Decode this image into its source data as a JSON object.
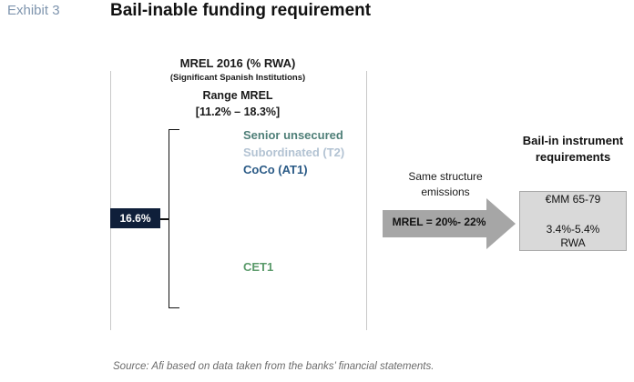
{
  "exhibit": {
    "label": "Exhibit 3",
    "title": "Bail-inable funding requirement"
  },
  "mrel_panel": {
    "title": "MREL 2016 (% RWA)",
    "subtitle": "(Significant Spanish Institutions)",
    "range_title": "Range MREL",
    "range_value": "[11.2% – 18.3%]",
    "layers": {
      "senior": "Senior unsecured",
      "subordinated": "Subordinated (T2)",
      "coco": "CoCo (AT1)",
      "cet1": "CET1"
    },
    "marker_value": "16.6%"
  },
  "transition": {
    "label": "Same structure emissions",
    "arrow_label": "MREL = 20%- 22%"
  },
  "bailin": {
    "title": "Bail-in instrument requirements",
    "amount": "€MM 65-79",
    "pct": "3.4%-5.4%",
    "unit": "RWA"
  },
  "source": "Source: Afi based on data taken from the banks’ financial statements.",
  "colors": {
    "senior": "#4f7f78",
    "subordinated": "#b3c3d3",
    "coco": "#2a5a86",
    "cet1": "#5a9a6a",
    "marker_bg": "#0f1f3a",
    "arrow": "#a6a6a6",
    "bailin_box": "#d9d9d9"
  }
}
